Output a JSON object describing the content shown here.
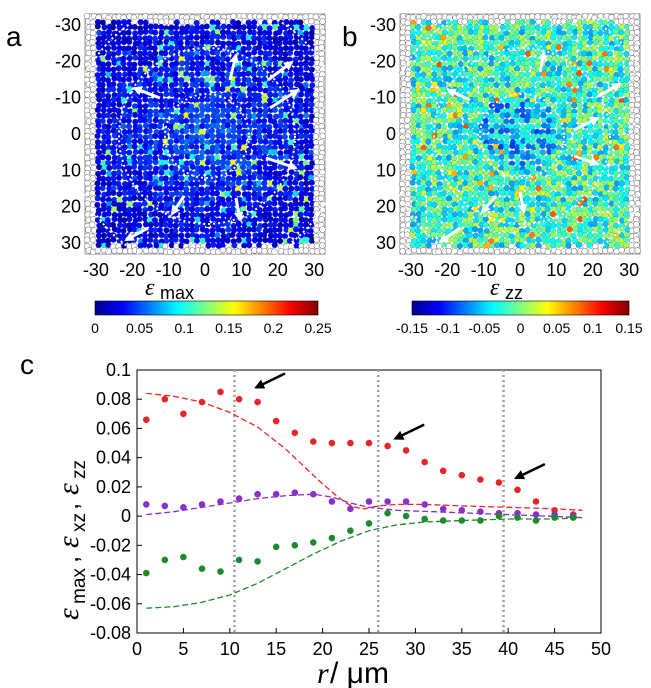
{
  "panels": {
    "a": {
      "label": "a",
      "x_ticks": [
        "-30",
        "-20",
        "-10",
        "0",
        "10",
        "20",
        "30"
      ],
      "y_ticks": [
        "-30",
        "-20",
        "-10",
        "0",
        "10",
        "20",
        "30"
      ],
      "colorbar": {
        "symbol": "ε",
        "subscript": "max",
        "ticks": [
          "0",
          "0.05",
          "0.1",
          "0.15",
          "0.2",
          "0.25"
        ],
        "colormap": [
          "#00008f",
          "#0000ff",
          "#0080ff",
          "#00ffff",
          "#80ff80",
          "#ffff00",
          "#ff8000",
          "#ff0000",
          "#800000"
        ]
      }
    },
    "b": {
      "label": "b",
      "x_ticks": [
        "-30",
        "-20",
        "-10",
        "0",
        "10",
        "20",
        "30"
      ],
      "y_ticks": [
        "-30",
        "-20",
        "-10",
        "0",
        "10",
        "20",
        "30"
      ],
      "colorbar": {
        "symbol": "ε",
        "subscript": "zz",
        "ticks": [
          "-0.15",
          "-0.1",
          "-0.05",
          "0",
          "0.05",
          "0.1",
          "0.15"
        ],
        "colormap": [
          "#00008f",
          "#0000ff",
          "#0080ff",
          "#00ffff",
          "#80ff80",
          "#ffff00",
          "#ff8000",
          "#ff0000",
          "#800000"
        ]
      }
    },
    "c": {
      "label": "c",
      "xlabel_symbol": "r",
      "xlabel_rest": " / μm",
      "ylabel_parts": [
        {
          "sym": "ε",
          "sub": "max"
        },
        {
          "sym": "ε",
          "sub": "xz"
        },
        {
          "sym": "ε",
          "sub": "zz"
        }
      ]
    }
  },
  "chart_data": {
    "type": "scatter",
    "xlim": [
      0,
      50
    ],
    "ylim": [
      -0.08,
      0.1
    ],
    "x_ticks": [
      0,
      5,
      10,
      15,
      20,
      25,
      30,
      35,
      40,
      45,
      50
    ],
    "y_ticks": [
      -0.08,
      -0.06,
      -0.04,
      -0.02,
      0,
      0.02,
      0.04,
      0.06,
      0.08,
      0.1
    ],
    "x_tick_labels": [
      "0",
      "5",
      "10",
      "15",
      "20",
      "25",
      "30",
      "35",
      "40",
      "45",
      "50"
    ],
    "y_tick_labels": [
      "-0.08",
      "-0.06",
      "-0.04",
      "-0.02",
      "0",
      "0.02",
      "0.04",
      "0.06",
      "0.08",
      "0.1"
    ],
    "vlines": [
      10.5,
      26,
      39.5
    ],
    "series": [
      {
        "color": "#e8262a",
        "points": [
          [
            1,
            0.066
          ],
          [
            3,
            0.08
          ],
          [
            5,
            0.07
          ],
          [
            7,
            0.078
          ],
          [
            9,
            0.085
          ],
          [
            11,
            0.08
          ],
          [
            13,
            0.078
          ],
          [
            15,
            0.065
          ],
          [
            17,
            0.057
          ],
          [
            19,
            0.051
          ],
          [
            21,
            0.05
          ],
          [
            23,
            0.05
          ],
          [
            25,
            0.05
          ],
          [
            27,
            0.048
          ],
          [
            29,
            0.045
          ],
          [
            31,
            0.037
          ],
          [
            33,
            0.031
          ],
          [
            35,
            0.028
          ],
          [
            37,
            0.025
          ],
          [
            39,
            0.023
          ],
          [
            41,
            0.018
          ],
          [
            43,
            0.01
          ],
          [
            45,
            0.004
          ],
          [
            47,
            0.001
          ]
        ],
        "fit": [
          [
            1,
            0.084
          ],
          [
            4,
            0.082
          ],
          [
            7,
            0.078
          ],
          [
            10,
            0.071
          ],
          [
            13,
            0.061
          ],
          [
            16,
            0.046
          ],
          [
            18,
            0.034
          ],
          [
            20,
            0.022
          ],
          [
            21.5,
            0.014
          ],
          [
            22.5,
            0.009
          ],
          [
            23.5,
            0.006
          ],
          [
            24.5,
            0.005
          ],
          [
            26,
            0.007
          ],
          [
            28,
            0.008
          ],
          [
            31,
            0.008
          ],
          [
            35,
            0.007
          ],
          [
            40,
            0.006
          ],
          [
            45,
            0.005
          ],
          [
            48,
            0.004
          ]
        ]
      },
      {
        "color": "#8b2fc9",
        "points": [
          [
            1,
            0.008
          ],
          [
            3,
            0.007
          ],
          [
            5,
            0.006
          ],
          [
            7,
            0.008
          ],
          [
            9,
            0.01
          ],
          [
            11,
            0.012
          ],
          [
            13,
            0.015
          ],
          [
            15,
            0.015
          ],
          [
            17,
            0.016
          ],
          [
            19,
            0.015
          ],
          [
            21,
            0.01
          ],
          [
            23,
            0.005
          ],
          [
            25,
            0.01
          ],
          [
            27,
            0.01
          ],
          [
            29,
            0.01
          ],
          [
            31,
            0.008
          ],
          [
            33,
            0.005
          ],
          [
            35,
            0.004
          ],
          [
            37,
            0.003
          ],
          [
            39,
            0.002
          ],
          [
            41,
            0.002
          ],
          [
            43,
            0.001
          ],
          [
            45,
            0.001
          ],
          [
            47,
            0.0
          ]
        ],
        "fit": [
          [
            1,
            0.001
          ],
          [
            4,
            0.003
          ],
          [
            7,
            0.006
          ],
          [
            10,
            0.009
          ],
          [
            13,
            0.012
          ],
          [
            16,
            0.014
          ],
          [
            19,
            0.015
          ],
          [
            21,
            0.013
          ],
          [
            23,
            0.009
          ],
          [
            25,
            0.006
          ],
          [
            28,
            0.004
          ],
          [
            32,
            0.003
          ],
          [
            36,
            0.002
          ],
          [
            40,
            0.001
          ],
          [
            44,
            0.0
          ],
          [
            48,
            -0.001
          ]
        ]
      },
      {
        "color": "#1e8a2e",
        "points": [
          [
            1,
            -0.039
          ],
          [
            3,
            -0.03
          ],
          [
            5,
            -0.028
          ],
          [
            7,
            -0.036
          ],
          [
            9,
            -0.038
          ],
          [
            11,
            -0.03
          ],
          [
            13,
            -0.031
          ],
          [
            15,
            -0.021
          ],
          [
            17,
            -0.02
          ],
          [
            19,
            -0.018
          ],
          [
            21,
            -0.015
          ],
          [
            23,
            -0.01
          ],
          [
            25,
            -0.005
          ],
          [
            27,
            0.002
          ],
          [
            29,
            0.0
          ],
          [
            31,
            -0.002
          ],
          [
            33,
            -0.003
          ],
          [
            35,
            -0.003
          ],
          [
            37,
            -0.003
          ],
          [
            39,
            0.0
          ],
          [
            41,
            -0.001
          ],
          [
            43,
            -0.003
          ],
          [
            45,
            -0.001
          ],
          [
            47,
            -0.001
          ]
        ],
        "fit": [
          [
            1,
            -0.063
          ],
          [
            4,
            -0.062
          ],
          [
            7,
            -0.059
          ],
          [
            10,
            -0.054
          ],
          [
            13,
            -0.046
          ],
          [
            16,
            -0.036
          ],
          [
            19,
            -0.026
          ],
          [
            22,
            -0.017
          ],
          [
            25,
            -0.01
          ],
          [
            28,
            -0.006
          ],
          [
            31,
            -0.004
          ],
          [
            35,
            -0.003
          ],
          [
            40,
            -0.002
          ],
          [
            45,
            -0.002
          ],
          [
            48,
            -0.001
          ]
        ]
      }
    ],
    "arrows": [
      [
        12.5,
        0.088
      ],
      [
        27.5,
        0.053
      ],
      [
        40.5,
        0.026
      ]
    ]
  }
}
